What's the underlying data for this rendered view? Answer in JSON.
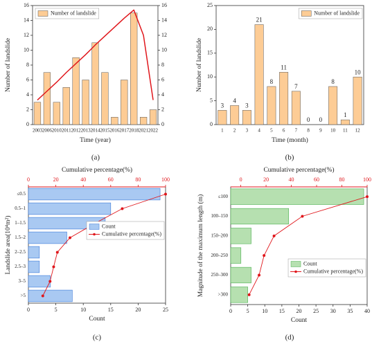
{
  "chart_data": [
    {
      "type": "bar",
      "caption": "(a)",
      "xlabel": "Time (year)",
      "ylabel": "Number of landslide",
      "categories": [
        "2003",
        "2006",
        "2010",
        "2011",
        "2012",
        "2013",
        "2014",
        "2015",
        "2016",
        "2017",
        "2018",
        "2021",
        "2022"
      ],
      "series": [
        {
          "name": "Number of landslide",
          "color": "#fdcc95",
          "values": [
            3,
            7,
            3,
            5,
            9,
            6,
            11,
            7,
            1,
            6,
            15,
            1,
            2
          ]
        },
        {
          "type": "line",
          "axis": "y2",
          "color": "#e0161b",
          "values": [
            3.3,
            4.5,
            5.7,
            7.0,
            8.2,
            9.4,
            10.7,
            11.9,
            13.1,
            14.3,
            15.4,
            12.0,
            3.3
          ]
        }
      ],
      "ylim": [
        0,
        16
      ],
      "yticks": [
        0,
        2,
        4,
        6,
        8,
        10,
        12,
        14,
        16
      ],
      "y2lim": [
        0,
        16
      ],
      "y2ticks": [
        0,
        2,
        4,
        6,
        8,
        10,
        12,
        14,
        16
      ],
      "legend": "upper left"
    },
    {
      "type": "bar",
      "caption": "(b)",
      "xlabel": "Time (month)",
      "ylabel": "Number of landslide",
      "categories": [
        "1",
        "2",
        "3",
        "4",
        "5",
        "6",
        "7",
        "8",
        "9",
        "10",
        "11",
        "12"
      ],
      "series": [
        {
          "name": "Number of landslide",
          "color": "#fdcc95",
          "values": [
            3,
            4,
            3,
            21,
            8,
            11,
            7,
            0,
            0,
            8,
            1,
            10
          ]
        }
      ],
      "ylim": [
        0,
        25
      ],
      "yticks": [
        0,
        5,
        10,
        15,
        20,
        25
      ],
      "data_labels": true,
      "legend": "upper right"
    },
    {
      "type": "bar",
      "orientation": "horizontal",
      "caption": "(c)",
      "xlabel": "Count",
      "x2label": "Cumulative percentage(%)",
      "ylabel": "Landslide area(10⁴m²)",
      "categories": [
        "≤0.5",
        "0.5–1",
        "1–1.5",
        "1.5–2",
        "2–2.5",
        "2.5–3",
        "3–5",
        ">5"
      ],
      "series": [
        {
          "name": "Count",
          "color": "#a9c9f2",
          "edge": "#3b78d8",
          "values": [
            24,
            15,
            14,
            7,
            2,
            2,
            4,
            8
          ]
        },
        {
          "name": "Cumulative percentage(%)",
          "type": "line",
          "axis": "x2",
          "color": "#e0161b",
          "values": [
            100,
            68.4,
            48.7,
            30.3,
            21.1,
            18.4,
            15.8,
            10.5
          ]
        }
      ],
      "xlim": [
        0,
        25
      ],
      "xticks": [
        0,
        5,
        10,
        15,
        20,
        25
      ],
      "x2lim": [
        0,
        100
      ],
      "x2ticks": [
        0,
        20,
        40,
        60,
        80,
        100
      ],
      "legend": "center right"
    },
    {
      "type": "bar",
      "orientation": "horizontal",
      "caption": "(d)",
      "xlabel": "Count",
      "x2label": "Cumulative percentage(%)",
      "ylabel": "Magnitude of the maximum length (m)",
      "categories": [
        "≤100",
        "100–150",
        "150–200",
        "200–250",
        "250–300",
        ">300"
      ],
      "series": [
        {
          "name": "Count",
          "color": "#b6e0b0",
          "edge": "#4caf50",
          "values": [
            39,
            17,
            6,
            3,
            6,
            5
          ]
        },
        {
          "name": "Cumulative percentage(%)",
          "type": "line",
          "axis": "x2",
          "color": "#e0161b",
          "values": [
            100,
            48.7,
            26.3,
            18.4,
            14.5,
            6.6
          ]
        }
      ],
      "xlim": [
        0,
        40
      ],
      "xticks": [
        0,
        5,
        10,
        15,
        20,
        25,
        30,
        35,
        40
      ],
      "x2lim": [
        -8,
        100
      ],
      "x2ticks": [
        0,
        20,
        40,
        60,
        80,
        100
      ],
      "legend": "lower right"
    }
  ]
}
